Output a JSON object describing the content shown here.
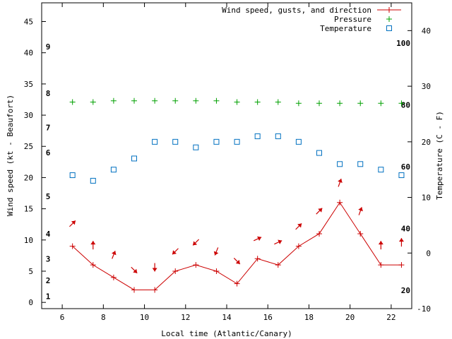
{
  "chart_data": {
    "type": "line",
    "title": "",
    "xlabel": "Local time (Atlantic/Canary)",
    "ylabel": "Wind speed (kt - Beaufort)",
    "y2label": "Temperature (C - F)",
    "xlim": [
      5,
      23
    ],
    "ylim": [
      -1,
      48
    ],
    "y2lim": [
      -10,
      45
    ],
    "x_ticks": [
      "6",
      "8",
      "10",
      "12",
      "14",
      "16",
      "18",
      "20",
      "22"
    ],
    "y_ticks": [
      "0",
      "5",
      "10",
      "15",
      "20",
      "25",
      "30",
      "35",
      "40",
      "45"
    ],
    "y2_ticks": [
      "-10",
      "0",
      "10",
      "20",
      "30",
      "40"
    ],
    "beaufort_labels": [
      "1",
      "2",
      "3",
      "4",
      "5",
      "6",
      "7",
      "8",
      "9"
    ],
    "fahrenheit_labels": [
      "20",
      "40",
      "60",
      "80",
      "100"
    ],
    "legend_position": "top-right",
    "grid": false,
    "series": [
      {
        "name": "Wind speed, gusts, and direction",
        "color": "#cc0000",
        "x": [
          6.5,
          7.5,
          8.5,
          9.5,
          10.5,
          11.5,
          12.5,
          13.5,
          14.5,
          15.5,
          16.5,
          17.5,
          18.5,
          19.5,
          20.5,
          21.5,
          22.5
        ],
        "y": [
          9,
          6,
          4,
          2,
          2,
          5,
          6,
          5,
          3,
          7,
          6,
          9,
          11,
          16,
          11,
          6,
          6
        ],
        "direction_deg": [
          315,
          270,
          292,
          45,
          90,
          135,
          135,
          112,
          45,
          335,
          335,
          315,
          315,
          290,
          290,
          270,
          270
        ]
      },
      {
        "name": "Pressure",
        "color": "#00a000",
        "x": [
          6.5,
          7.5,
          8.5,
          9.5,
          10.5,
          11.5,
          12.5,
          13.5,
          14.5,
          15.5,
          16.5,
          17.5,
          18.5,
          19.5,
          20.5,
          21.5,
          22.5
        ],
        "y": [
          32.1,
          32.1,
          32.3,
          32.3,
          32.3,
          32.3,
          32.3,
          32.3,
          32.1,
          32.1,
          32.1,
          31.9,
          31.9,
          31.9,
          31.9,
          31.9,
          31.9
        ]
      },
      {
        "name": "Temperature",
        "color": "#0070c0",
        "x": [
          6.5,
          7.5,
          8.5,
          9.5,
          10.5,
          11.5,
          12.5,
          13.5,
          14.5,
          15.5,
          16.5,
          17.5,
          18.5,
          19.5,
          20.5,
          21.5,
          22.5
        ],
        "y": [
          14,
          13,
          15,
          17,
          20,
          20,
          19,
          20,
          20,
          21,
          21,
          20,
          18,
          16,
          16,
          15,
          14
        ]
      }
    ]
  }
}
